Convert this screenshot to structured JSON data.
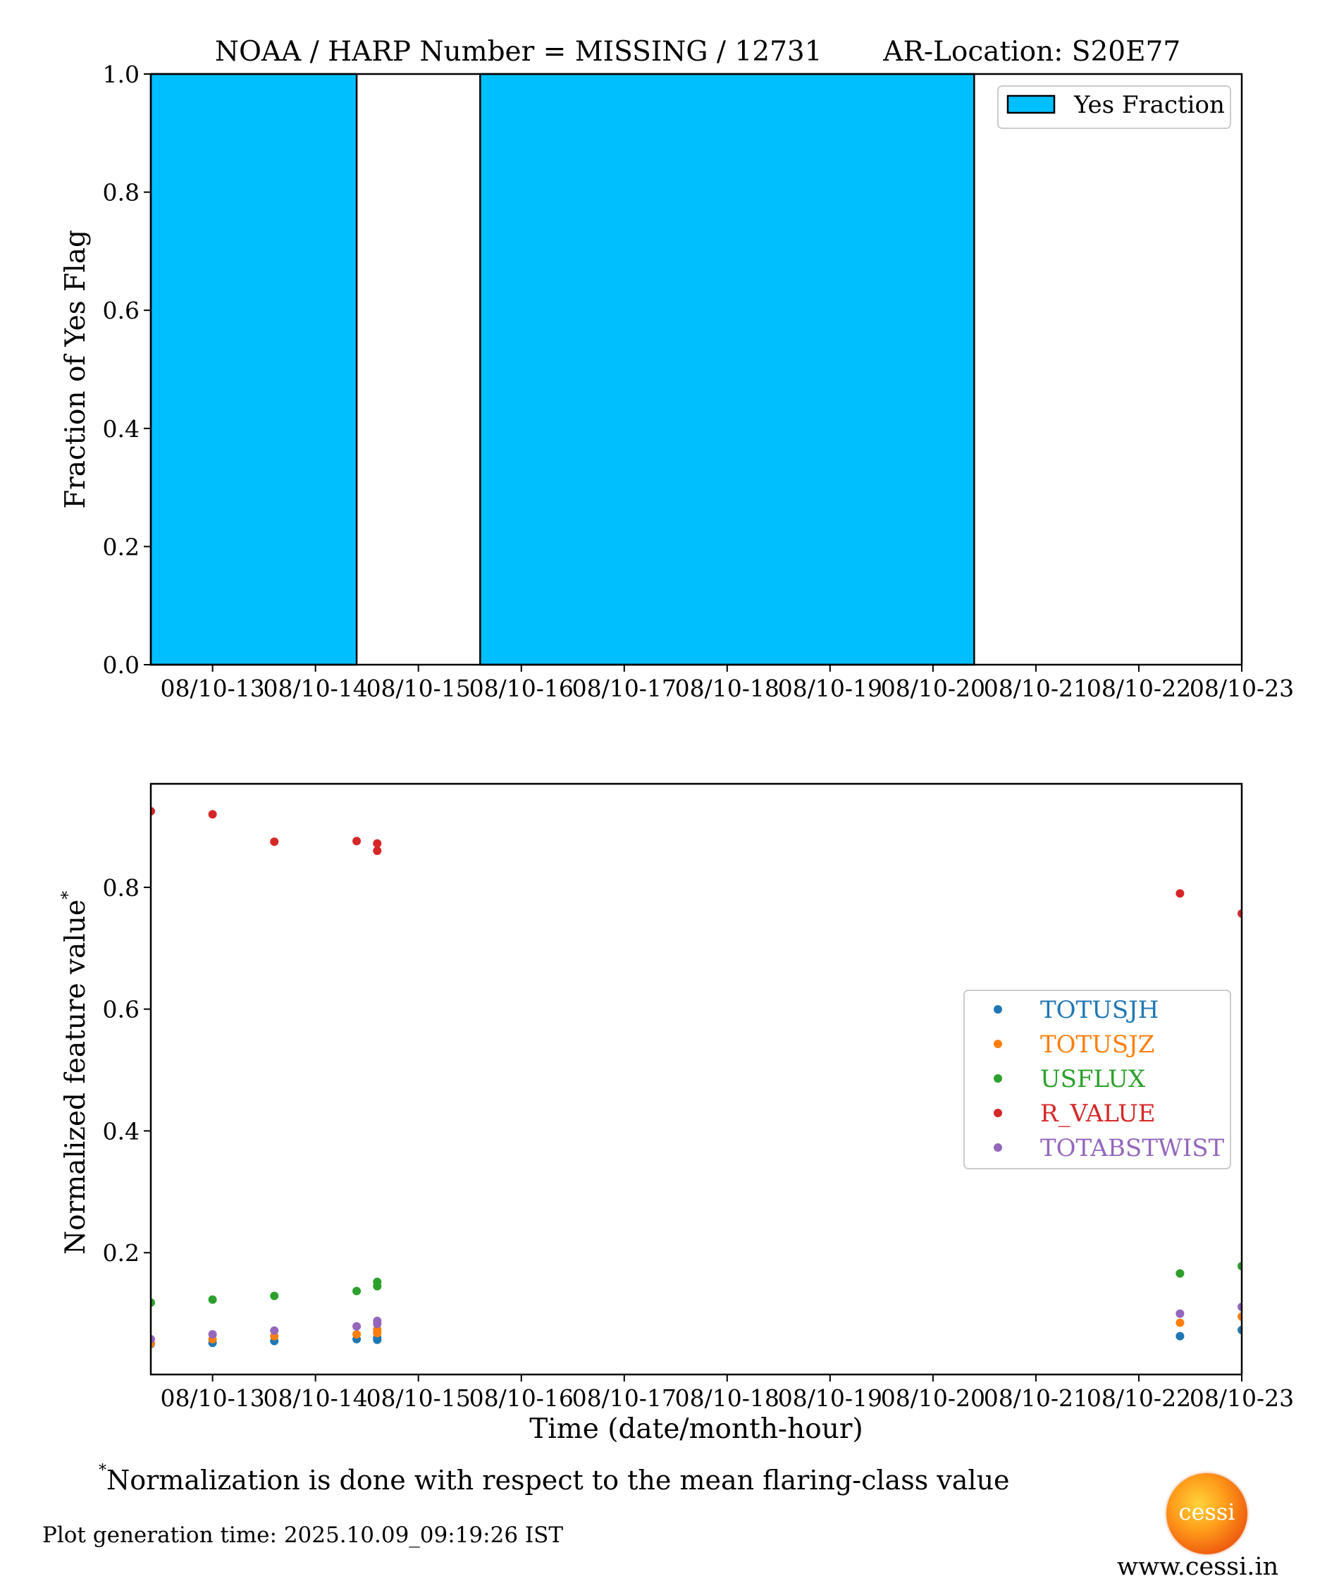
{
  "chart_data": [
    {
      "type": "bar",
      "title": "NOAA / HARP Number = MISSING / 12731       AR-Location: S20E77",
      "xlabel": "",
      "ylabel": "Fraction of Yes Flag",
      "ylim": [
        0,
        1
      ],
      "yticks": [
        "0.0",
        "0.2",
        "0.4",
        "0.6",
        "0.8",
        "1.0"
      ],
      "xtick_labels": [
        "08/10-13",
        "08/10-14",
        "08/10-15",
        "08/10-16",
        "08/10-17",
        "08/10-18",
        "08/10-19",
        "08/10-20",
        "08/10-21",
        "08/10-22",
        "08/10-23"
      ],
      "x_range_hours": [
        12.4,
        23.0
      ],
      "bars": [
        {
          "start_hour": 12.4,
          "end_hour": 14.4,
          "value": 1.0
        },
        {
          "start_hour": 14.4,
          "end_hour": 15.6,
          "value": 0.0
        },
        {
          "start_hour": 15.6,
          "end_hour": 20.4,
          "value": 1.0
        },
        {
          "start_hour": 20.4,
          "end_hour": 23.0,
          "value": 0.0
        }
      ],
      "bar_color": "#00bfff",
      "legend": {
        "entries": [
          "Yes Fraction"
        ],
        "placement": "top-right"
      }
    },
    {
      "type": "scatter",
      "xlabel": "Time (date/month-hour)",
      "ylabel": "Normalized feature value",
      "ylabel_superscript": "*",
      "yticks": [
        "0.2",
        "0.4",
        "0.6",
        "0.8"
      ],
      "ylim": [
        0.0,
        0.97
      ],
      "xtick_labels": [
        "08/10-13",
        "08/10-14",
        "08/10-15",
        "08/10-16",
        "08/10-17",
        "08/10-18",
        "08/10-19",
        "08/10-20",
        "08/10-21",
        "08/10-22",
        "08/10-23"
      ],
      "x_range_hours": [
        12.4,
        23.0
      ],
      "x_hours": [
        12.4,
        13.0,
        13.6,
        14.4,
        14.6,
        14.6,
        22.4,
        23.0
      ],
      "series": [
        {
          "name": "TOTUSJH",
          "color": "#1f77b4",
          "values": [
            0.05,
            0.052,
            0.055,
            0.058,
            0.057,
            0.06,
            0.063,
            0.073
          ]
        },
        {
          "name": "TOTUSJZ",
          "color": "#ff7f0e",
          "values": [
            0.051,
            0.058,
            0.063,
            0.066,
            0.068,
            0.074,
            0.085,
            0.095
          ]
        },
        {
          "name": "USFLUX",
          "color": "#2ca02c",
          "values": [
            0.118,
            0.123,
            0.129,
            0.137,
            0.145,
            0.152,
            0.166,
            0.178
          ]
        },
        {
          "name": "R_VALUE",
          "color": "#d62728",
          "values": [
            0.925,
            0.92,
            0.875,
            0.876,
            0.86,
            0.872,
            0.79,
            0.757
          ]
        },
        {
          "name": "TOTABSTWIST",
          "color": "#9467bd",
          "values": [
            0.058,
            0.066,
            0.072,
            0.079,
            0.083,
            0.088,
            0.1,
            0.111
          ]
        }
      ],
      "legend": {
        "placement": "center-right"
      }
    }
  ],
  "footnote": {
    "marker": "*",
    "text": "Normalization is done with respect to the mean flaring-class value"
  },
  "generation_time": "Plot generation time: 2025.10.09_09:19:26 IST",
  "logo": {
    "text": "cessi",
    "icon": "sun-logo-icon"
  },
  "website": "www.cessi.in"
}
